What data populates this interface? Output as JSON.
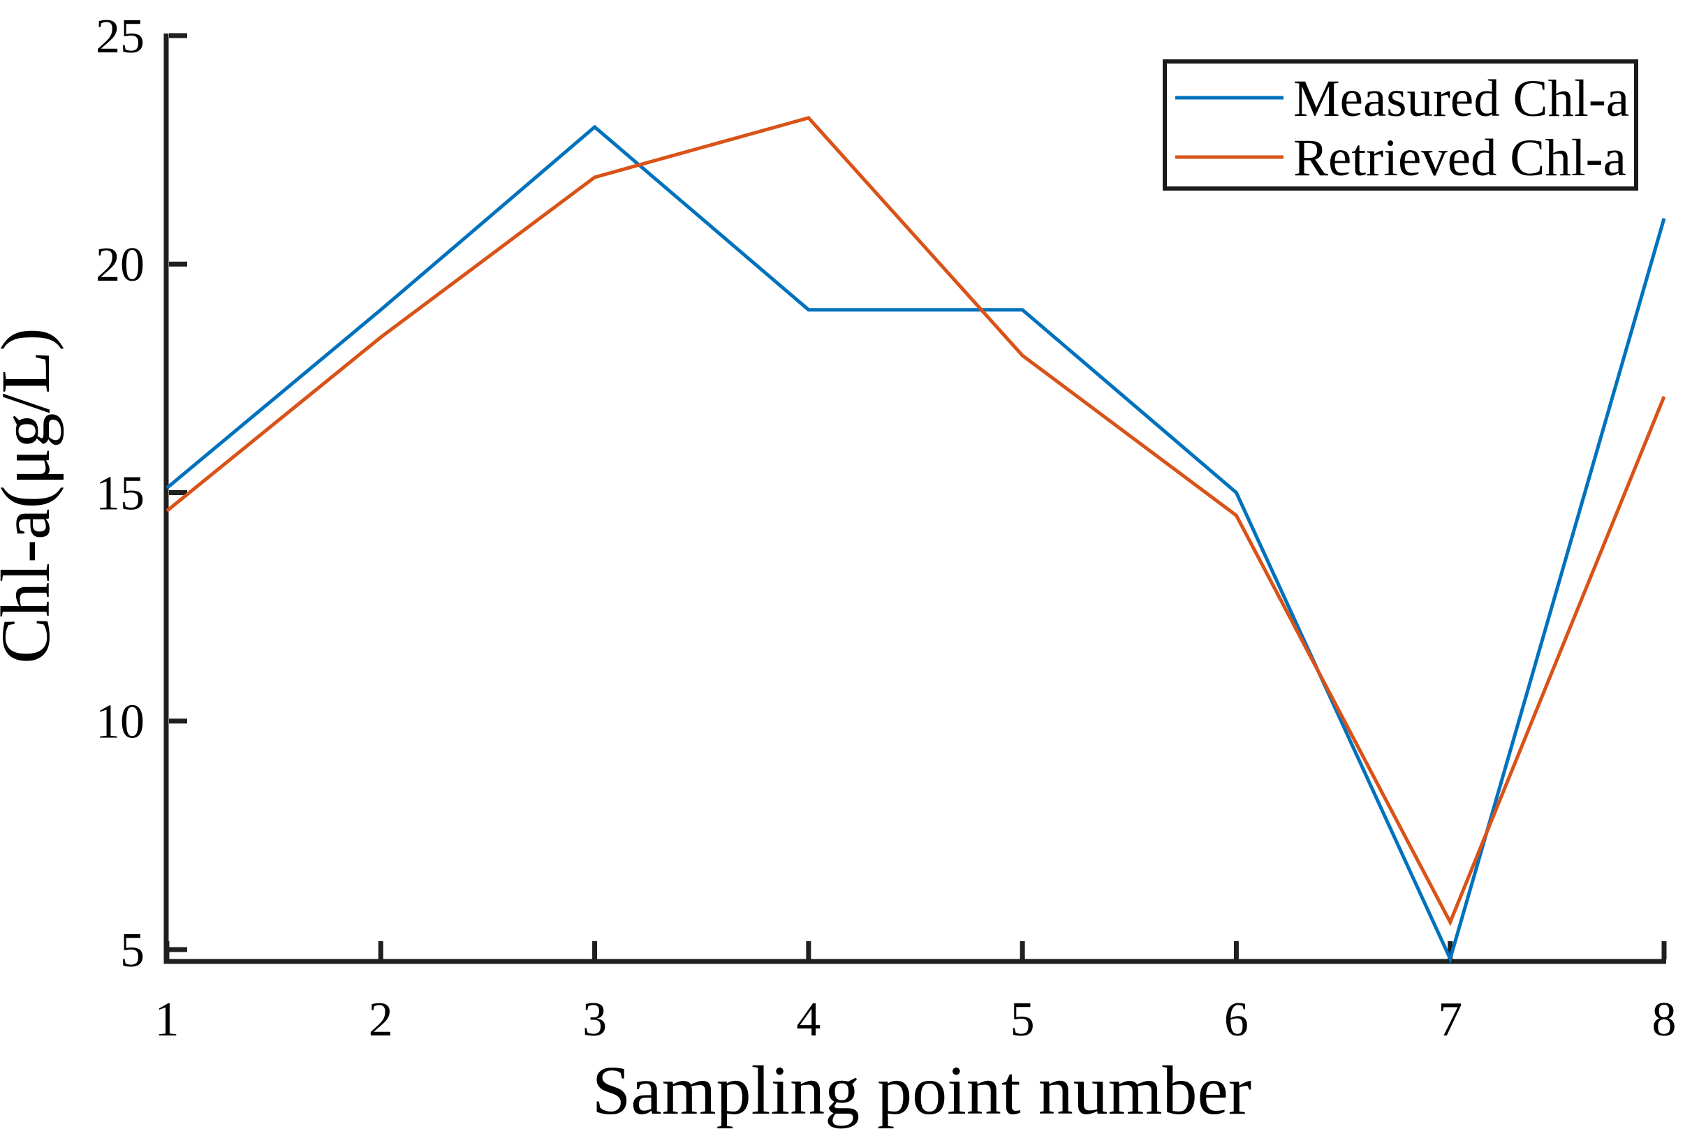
{
  "chart_data": {
    "type": "line",
    "title": "",
    "xlabel": "Sampling point number",
    "ylabel": "Chl-a(μg/L)",
    "x": [
      1,
      2,
      3,
      4,
      5,
      6,
      7,
      8
    ],
    "x_tick_labels": [
      "1",
      "2",
      "3",
      "4",
      "5",
      "6",
      "7",
      "8"
    ],
    "y_ticks": [
      5,
      10,
      15,
      20,
      25
    ],
    "y_tick_labels": [
      "5",
      "10",
      "15",
      "20",
      "25"
    ],
    "xlim": [
      1,
      8
    ],
    "ylim": [
      4.74,
      25
    ],
    "grid": false,
    "legend_position": "top-right",
    "series": [
      {
        "name": "Measured Chl-a",
        "color": "#0072BD",
        "values": [
          15.1,
          19.0,
          23.0,
          19.0,
          19.0,
          15.0,
          4.8,
          21.0
        ]
      },
      {
        "name": "Retrieved Chl-a",
        "color": "#D95319",
        "values": [
          14.6,
          18.4,
          21.9,
          23.2,
          18.0,
          14.5,
          5.6,
          17.1
        ]
      }
    ]
  }
}
